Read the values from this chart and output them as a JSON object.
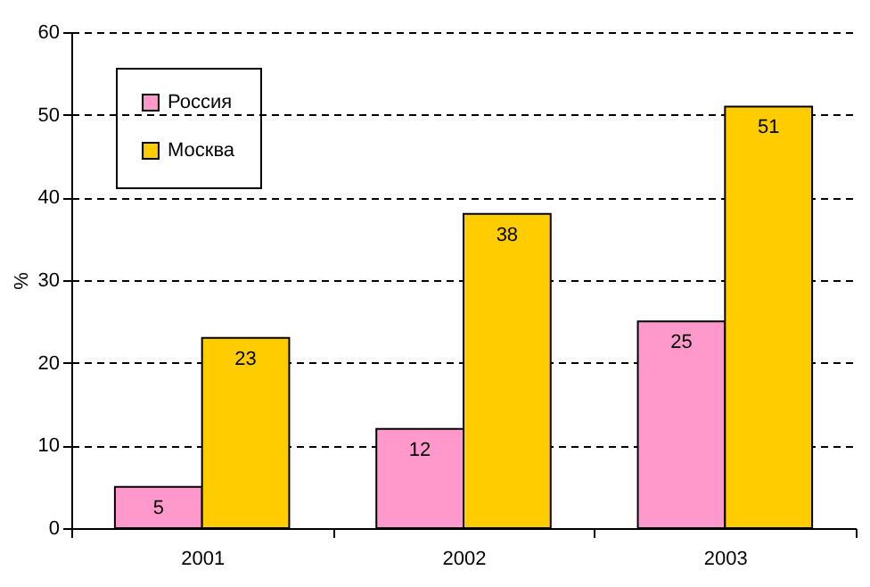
{
  "chart_data": {
    "type": "bar",
    "categories": [
      "2001",
      "2002",
      "2003"
    ],
    "series": [
      {
        "name": "Россия",
        "color": "#ff99cc",
        "values": [
          5,
          12,
          25
        ]
      },
      {
        "name": "Москва",
        "color": "#ffcc00",
        "values": [
          23,
          38,
          51
        ]
      }
    ],
    "ylabel": "%",
    "ylim": [
      0,
      60
    ],
    "yticks": [
      0,
      10,
      20,
      30,
      40,
      50,
      60
    ],
    "grid": "y",
    "legend": "top left",
    "data_labels": true
  }
}
